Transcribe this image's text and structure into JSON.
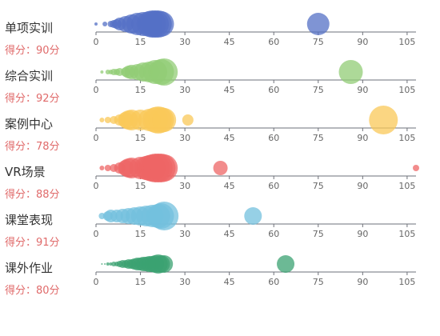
{
  "chart_data": {
    "type": "scatter",
    "x_ticks": [
      "0",
      "15",
      "30",
      "45",
      "60",
      "75",
      "90",
      "105"
    ],
    "xlim": [
      0,
      108
    ],
    "rows": [
      {
        "name": "单项实训",
        "score_text": "得分：90分",
        "color": "#5470c6",
        "points": [
          [
            0,
            2
          ],
          [
            3,
            3
          ],
          [
            5,
            4
          ],
          [
            6,
            5
          ],
          [
            7,
            6
          ],
          [
            8,
            8
          ],
          [
            10,
            10
          ],
          [
            12,
            12
          ],
          [
            14,
            14
          ],
          [
            16,
            15
          ],
          [
            18,
            16
          ],
          [
            19,
            17
          ],
          [
            20,
            17
          ],
          [
            21,
            17
          ],
          [
            22,
            16
          ],
          [
            75,
            14
          ]
        ]
      },
      {
        "name": "综合实训",
        "score_text": "得分：92分",
        "color": "#91cc75",
        "points": [
          [
            2,
            2
          ],
          [
            4,
            3
          ],
          [
            5,
            3
          ],
          [
            6,
            4
          ],
          [
            7,
            4
          ],
          [
            8,
            5
          ],
          [
            10,
            6
          ],
          [
            11,
            8
          ],
          [
            12,
            9
          ],
          [
            14,
            10
          ],
          [
            16,
            12
          ],
          [
            18,
            13
          ],
          [
            20,
            15
          ],
          [
            22,
            16
          ],
          [
            23,
            17
          ],
          [
            86,
            15
          ]
        ]
      },
      {
        "name": "案例中心",
        "score_text": "得分：78分",
        "color": "#fac858",
        "points": [
          [
            2,
            3
          ],
          [
            4,
            4
          ],
          [
            6,
            5
          ],
          [
            8,
            7
          ],
          [
            10,
            10
          ],
          [
            11,
            12
          ],
          [
            12,
            13
          ],
          [
            15,
            13
          ],
          [
            18,
            14
          ],
          [
            20,
            16
          ],
          [
            21,
            17
          ],
          [
            22,
            16
          ],
          [
            23,
            15
          ],
          [
            31,
            7
          ],
          [
            97,
            18
          ]
        ]
      },
      {
        "name": "VR场景",
        "score_text": "得分：88分",
        "color": "#ee6666",
        "points": [
          [
            2,
            3
          ],
          [
            4,
            4
          ],
          [
            6,
            5
          ],
          [
            8,
            7
          ],
          [
            10,
            10
          ],
          [
            11,
            12
          ],
          [
            12,
            13
          ],
          [
            15,
            14
          ],
          [
            17,
            15
          ],
          [
            18,
            16
          ],
          [
            19,
            17
          ],
          [
            20,
            18
          ],
          [
            21,
            18
          ],
          [
            22,
            18
          ],
          [
            23,
            17
          ],
          [
            42,
            9
          ],
          [
            108,
            4
          ]
        ]
      },
      {
        "name": "课堂表现",
        "score_text": "得分：91分",
        "color": "#73c0de",
        "points": [
          [
            2,
            4
          ],
          [
            4,
            6
          ],
          [
            5,
            8
          ],
          [
            7,
            8
          ],
          [
            9,
            9
          ],
          [
            11,
            10
          ],
          [
            13,
            11
          ],
          [
            15,
            12
          ],
          [
            17,
            13
          ],
          [
            19,
            14
          ],
          [
            21,
            15
          ],
          [
            22,
            16
          ],
          [
            23,
            18
          ],
          [
            53,
            11
          ]
        ]
      },
      {
        "name": "课外作业",
        "score_text": "得分：80分",
        "color": "#3ba272",
        "points": [
          [
            2,
            1
          ],
          [
            3,
            1
          ],
          [
            4,
            2
          ],
          [
            5,
            2
          ],
          [
            6,
            3
          ],
          [
            7,
            3
          ],
          [
            8,
            4
          ],
          [
            9,
            5
          ],
          [
            10,
            5
          ],
          [
            11,
            6
          ],
          [
            12,
            6
          ],
          [
            13,
            7
          ],
          [
            14,
            8
          ],
          [
            15,
            8
          ],
          [
            16,
            9
          ],
          [
            17,
            9
          ],
          [
            18,
            10
          ],
          [
            19,
            10
          ],
          [
            20,
            11
          ],
          [
            21,
            12
          ],
          [
            22,
            11
          ],
          [
            23,
            11
          ],
          [
            64,
            11
          ]
        ]
      }
    ]
  }
}
